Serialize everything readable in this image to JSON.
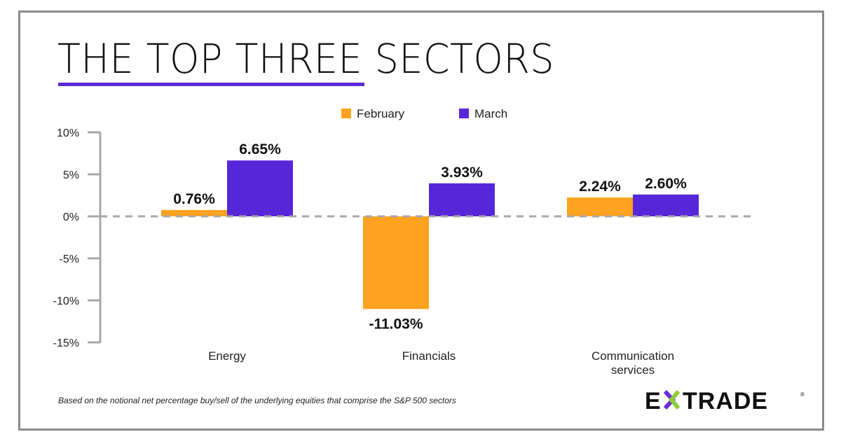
{
  "title": "THE TOP THREE SECTORS",
  "footnote": "Based on the notional net percentage buy/sell of the underlying equities that comprise the S&P 500 sectors",
  "logo": "E*TRADE",
  "colors": {
    "accent": "#5b2bd8",
    "february": "#ffa21f",
    "march": "#5627d8",
    "axis": "#a8a8a8",
    "frame": "#8c8c8c"
  },
  "chart_data": {
    "type": "bar",
    "categories": [
      "Energy",
      "Financials",
      "Communication services"
    ],
    "series": [
      {
        "name": "February",
        "values": [
          0.76,
          -11.03,
          2.24
        ],
        "labels": [
          "0.76%",
          "-11.03%",
          "2.24%"
        ]
      },
      {
        "name": "March",
        "values": [
          6.65,
          3.93,
          2.6
        ],
        "labels": [
          "6.65%",
          "3.93%",
          "2.60%"
        ]
      }
    ],
    "yticks": [
      10,
      5,
      0,
      -5,
      -10,
      -15
    ],
    "ytick_labels": [
      "10%",
      "5%",
      "0%",
      "-5%",
      "-10%",
      "-15%"
    ],
    "ylim": [
      -15,
      10
    ],
    "legend_position": "top",
    "zero_line": "dashed",
    "grid": false
  }
}
